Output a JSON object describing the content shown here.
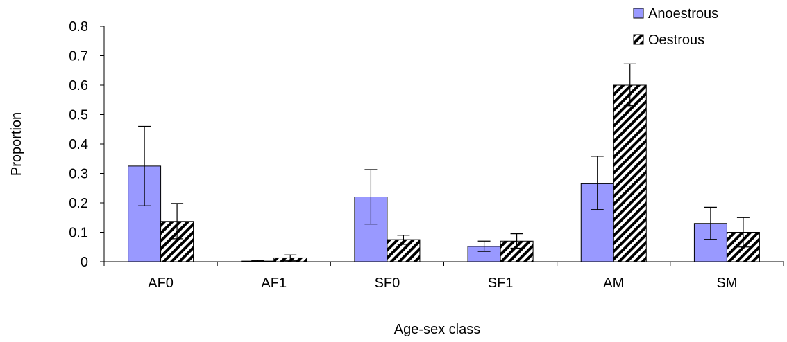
{
  "chart_data": {
    "type": "bar",
    "title": "",
    "xlabel": "Age-sex class",
    "ylabel": "Proportion",
    "categories": [
      "AF0",
      "AF1",
      "SF0",
      "SF1",
      "AM",
      "SM"
    ],
    "ylim": [
      0,
      0.8
    ],
    "yticks": [
      "0",
      "0.1",
      "0.2",
      "0.3",
      "0.4",
      "0.5",
      "0.6",
      "0.7",
      "0.8"
    ],
    "grid": false,
    "legend_position": "top-right",
    "series": [
      {
        "name": "Anoestrous",
        "fill": "solid",
        "color": "#9999ff",
        "values": [
          0.325,
          0.002,
          0.22,
          0.052,
          0.265,
          0.13
        ],
        "error_low": [
          0.19,
          0.0,
          0.128,
          0.035,
          0.177,
          0.076
        ],
        "error_high": [
          0.46,
          0.004,
          0.313,
          0.07,
          0.358,
          0.185
        ]
      },
      {
        "name": "Oestrous",
        "fill": "diagonal-hatch",
        "color": "#000000",
        "values": [
          0.137,
          0.013,
          0.075,
          0.07,
          0.6,
          0.1
        ],
        "error_low": [
          0.078,
          0.003,
          0.059,
          0.046,
          0.53,
          0.05
        ],
        "error_high": [
          0.198,
          0.023,
          0.09,
          0.095,
          0.672,
          0.15
        ]
      }
    ]
  }
}
